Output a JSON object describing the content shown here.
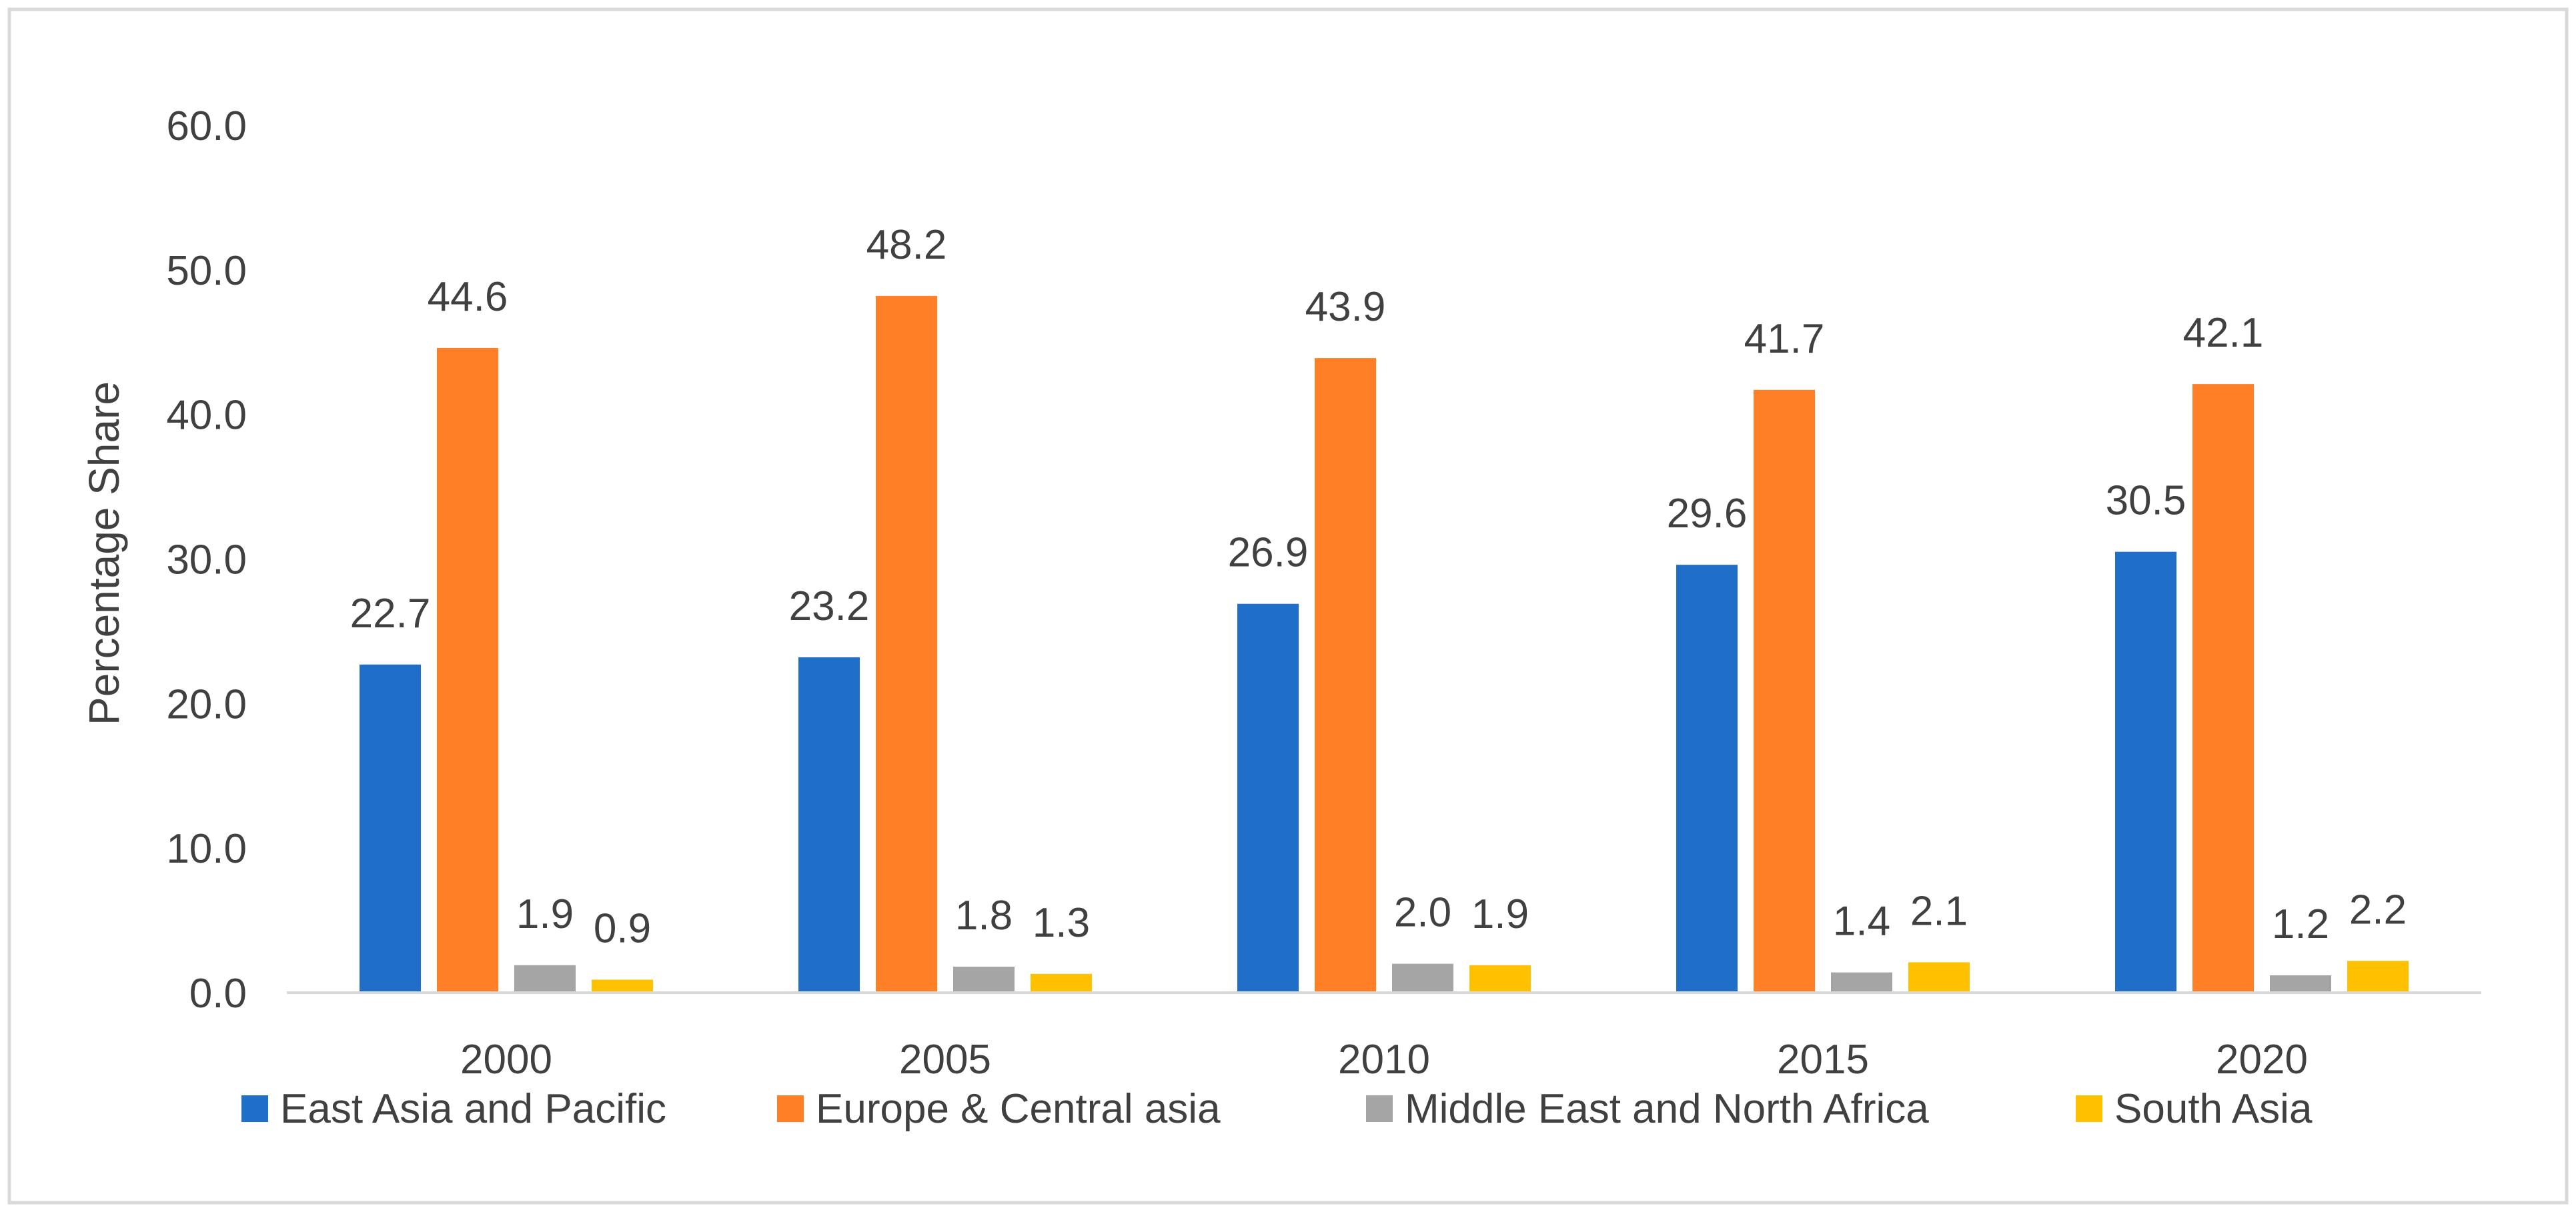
{
  "colors": {
    "background": "#ffffff",
    "frame": "#d9d9d9",
    "axis": "#d9d9d9",
    "text": "#404040"
  },
  "chart_data": {
    "type": "bar",
    "title": "",
    "xlabel": "",
    "ylabel": "Percentage Share",
    "ylim": [
      0,
      60
    ],
    "yticks": [
      0,
      10,
      20,
      30,
      40,
      50,
      60
    ],
    "ytick_labels": [
      "0.0",
      "10.0",
      "20.0",
      "30.0",
      "40.0",
      "50.0",
      "60.0"
    ],
    "grid": false,
    "legend_position": "bottom",
    "categories": [
      "2000",
      "2005",
      "2010",
      "2015",
      "2020"
    ],
    "series": [
      {
        "name": "East Asia and Pacific",
        "color": "#1f6fc9",
        "values": [
          22.7,
          23.2,
          26.9,
          29.6,
          30.5
        ],
        "labels": [
          "22.7",
          "23.2",
          "26.9",
          "29.6",
          "30.5"
        ]
      },
      {
        "name": "Europe & Central asia",
        "color": "#ff7f27",
        "values": [
          44.6,
          48.2,
          43.9,
          41.7,
          42.1
        ],
        "labels": [
          "44.6",
          "48.2",
          "43.9",
          "41.7",
          "42.1"
        ]
      },
      {
        "name": "Middle East and North Africa",
        "color": "#a5a5a5",
        "values": [
          1.9,
          1.8,
          2.0,
          1.4,
          1.2
        ],
        "labels": [
          "1.9",
          "1.8",
          "2.0",
          "1.4",
          "1.2"
        ]
      },
      {
        "name": "South Asia",
        "color": "#ffc000",
        "values": [
          0.9,
          1.3,
          1.9,
          2.1,
          2.2
        ],
        "labels": [
          "0.9",
          "1.3",
          "1.9",
          "2.1",
          "2.2"
        ]
      }
    ]
  }
}
